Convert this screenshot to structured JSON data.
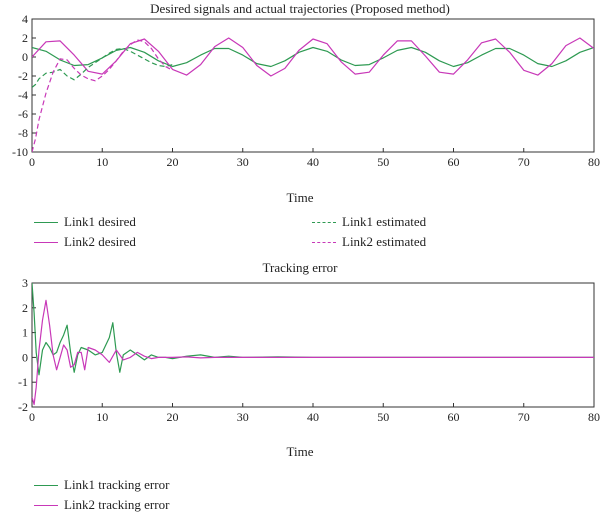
{
  "colors": {
    "link1": "#2e9a52",
    "link2": "#c838b8"
  },
  "chart_data": [
    {
      "type": "line",
      "title": "Desired signals and actual trajectories (Proposed method)",
      "xlabel": "Time",
      "ylabel": "",
      "xlim": [
        0,
        80
      ],
      "ylim": [
        -10,
        4
      ],
      "xticks": [
        0,
        10,
        20,
        30,
        40,
        50,
        60,
        70,
        80
      ],
      "yticks": [
        -10,
        -8,
        -6,
        -4,
        -2,
        0,
        2,
        4
      ],
      "legend_placement": "below",
      "series": [
        {
          "name": "Link1 desired",
          "style": "solid",
          "color": "#2e9a52",
          "x": [
            0,
            2,
            4,
            6,
            8,
            10,
            12,
            14,
            16,
            18,
            20,
            22,
            24,
            26,
            28,
            30,
            32,
            34,
            36,
            38,
            40,
            42,
            44,
            46,
            48,
            50,
            52,
            54,
            56,
            58,
            60,
            62,
            64,
            66,
            68,
            70,
            72,
            74,
            76,
            78,
            80
          ],
          "y": [
            1.0,
            0.6,
            -0.3,
            -0.9,
            -0.8,
            -0.1,
            0.7,
            1.0,
            0.5,
            -0.4,
            -1.0,
            -0.6,
            0.2,
            0.9,
            0.9,
            0.2,
            -0.7,
            -1.0,
            -0.4,
            0.5,
            1.0,
            0.6,
            -0.3,
            -0.9,
            -0.8,
            -0.1,
            0.7,
            1.0,
            0.5,
            -0.4,
            -1.0,
            -0.6,
            0.2,
            0.9,
            0.9,
            0.2,
            -0.7,
            -1.0,
            -0.4,
            0.5,
            1.0
          ]
        },
        {
          "name": "Link2 desired",
          "style": "solid",
          "color": "#c838b8",
          "x": [
            0,
            2,
            4,
            6,
            8,
            10,
            12,
            14,
            16,
            18,
            20,
            22,
            24,
            26,
            28,
            30,
            32,
            34,
            36,
            38,
            40,
            42,
            44,
            46,
            48,
            50,
            52,
            54,
            56,
            58,
            60,
            62,
            64,
            66,
            68,
            70,
            72,
            74,
            76,
            78,
            80
          ],
          "y": [
            0.0,
            1.6,
            1.7,
            0.2,
            -1.5,
            -1.8,
            -0.4,
            1.4,
            1.9,
            0.6,
            -1.3,
            -1.9,
            -0.8,
            1.1,
            2.0,
            1.0,
            -0.9,
            -2.0,
            -1.2,
            0.7,
            1.9,
            1.4,
            -0.5,
            -1.8,
            -1.6,
            0.2,
            1.7,
            1.7,
            0.1,
            -1.6,
            -1.8,
            -0.3,
            1.5,
            1.9,
            0.5,
            -1.4,
            -1.9,
            -0.7,
            1.2,
            2.0,
            0.9
          ]
        },
        {
          "name": "Link1 estimated",
          "style": "dashed",
          "color": "#2e9a52",
          "x": [
            0,
            0.5,
            1,
            2,
            3,
            4,
            5,
            6,
            7,
            8,
            9,
            10,
            11,
            12,
            13,
            14,
            15,
            16,
            17,
            18,
            19,
            20
          ],
          "y": [
            -3.2,
            -2.9,
            -2.3,
            -1.7,
            -1.6,
            -1.3,
            -2.0,
            -2.4,
            -1.8,
            -1.1,
            -0.6,
            -0.1,
            0.4,
            0.8,
            0.9,
            0.6,
            0.2,
            -0.2,
            -0.6,
            -0.9,
            -1.0,
            -0.8
          ]
        },
        {
          "name": "Link2 estimated",
          "style": "dashed",
          "color": "#c838b8",
          "x": [
            0,
            0.5,
            1,
            1.5,
            2,
            3,
            4,
            5,
            6,
            7,
            8,
            9,
            10,
            11,
            12,
            13,
            14,
            15,
            16,
            17,
            18,
            19,
            20
          ],
          "y": [
            -10,
            -8.6,
            -6.6,
            -5.2,
            -3.8,
            -1.6,
            -0.2,
            -0.3,
            -1.2,
            -1.9,
            -2.3,
            -2.5,
            -2.0,
            -1.3,
            -0.4,
            0.6,
            1.3,
            1.8,
            1.6,
            0.9,
            -0.2,
            -1.0,
            -1.4
          ]
        }
      ]
    },
    {
      "type": "line",
      "title": "Tracking error",
      "xlabel": "Time",
      "ylabel": "",
      "xlim": [
        0,
        80
      ],
      "ylim": [
        -2,
        3
      ],
      "xticks": [
        0,
        10,
        20,
        30,
        40,
        50,
        60,
        70,
        80
      ],
      "yticks": [
        -2,
        -1,
        0,
        1,
        2,
        3
      ],
      "legend_placement": "below",
      "series": [
        {
          "name": "Link1 tracking error",
          "style": "solid",
          "color": "#2e9a52",
          "x": [
            0,
            0.3,
            0.6,
            1,
            1.5,
            2,
            2.5,
            3,
            3.5,
            4,
            4.5,
            5,
            5.5,
            6,
            6.5,
            7,
            8,
            9,
            10,
            11,
            11.5,
            12,
            12.5,
            13,
            14,
            15,
            16,
            17,
            18,
            19,
            20,
            22,
            24,
            26,
            28,
            30,
            35,
            40,
            45,
            50,
            60,
            70,
            80
          ],
          "y": [
            3.0,
            1.8,
            0.2,
            -0.7,
            0.3,
            0.6,
            0.4,
            0.1,
            0.2,
            0.6,
            0.9,
            1.3,
            0.2,
            -0.6,
            0.1,
            0.4,
            0.3,
            0.1,
            0.2,
            0.8,
            1.4,
            0.2,
            -0.6,
            0.1,
            0.3,
            0.1,
            -0.1,
            0.1,
            0.0,
            0.0,
            -0.05,
            0.05,
            0.1,
            0.0,
            0.05,
            0.0,
            0.02,
            0.0,
            0.0,
            0.0,
            0.0,
            0.0,
            0.0
          ]
        },
        {
          "name": "Link2 tracking error",
          "style": "solid",
          "color": "#c838b8",
          "x": [
            0,
            0.3,
            0.6,
            1,
            1.5,
            2,
            2.5,
            3,
            3.5,
            4,
            4.5,
            5,
            5.5,
            6,
            6.5,
            7,
            7.5,
            8,
            9,
            10,
            11,
            12,
            13,
            14,
            15,
            16,
            17,
            18,
            20,
            22,
            24,
            26,
            28,
            30,
            35,
            40,
            45,
            50,
            60,
            70,
            80
          ],
          "y": [
            -1.6,
            -1.9,
            -1.2,
            0.3,
            1.5,
            2.3,
            1.3,
            0.1,
            -0.5,
            0.0,
            0.5,
            0.3,
            -0.4,
            -0.3,
            0.2,
            0.2,
            -0.5,
            0.4,
            0.3,
            0.1,
            -0.2,
            0.3,
            -0.1,
            0.0,
            0.2,
            0.05,
            -0.05,
            0.0,
            0.0,
            0.02,
            -0.02,
            0.0,
            0.0,
            0.0,
            0.0,
            0.0,
            0.0,
            0.0,
            0.0,
            0.0,
            0.0
          ]
        }
      ]
    }
  ]
}
